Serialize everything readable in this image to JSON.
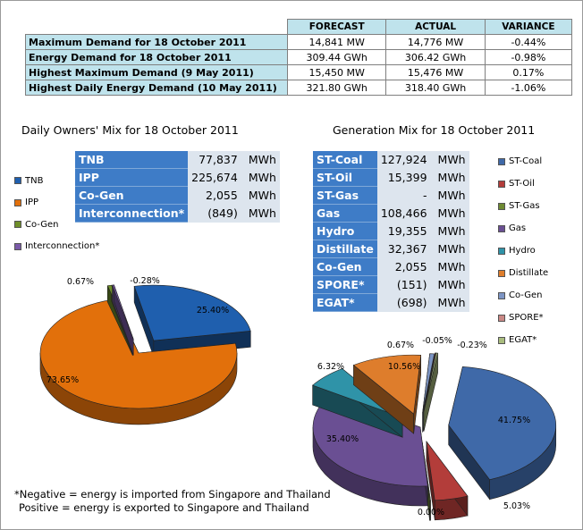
{
  "summary": {
    "headers": [
      "FORECAST",
      "ACTUAL",
      "VARIANCE"
    ],
    "rows": [
      {
        "label": "Maximum Demand for 18 October 2011",
        "forecast": "14,841 MW",
        "actual": "14,776 MW",
        "variance": "-0.44%"
      },
      {
        "label": "Energy Demand for 18 October 2011",
        "forecast": "309.44 GWh",
        "actual": "306.42 GWh",
        "variance": "-0.98%"
      },
      {
        "label": "Highest Maximum Demand (9 May 2011)",
        "forecast": "15,450 MW",
        "actual": "15,476 MW",
        "variance": "0.17%"
      },
      {
        "label": "Highest Daily Energy Demand (10 May 2011)",
        "forecast": "321.80 GWh",
        "actual": "318.40 GWh",
        "variance": "-1.06%"
      }
    ]
  },
  "owners": {
    "title": "Daily Owners' Mix for 18 October 2011",
    "rows": [
      {
        "name": "TNB",
        "value": "77,837",
        "unit": "MWh"
      },
      {
        "name": "IPP",
        "value": "225,674",
        "unit": "MWh"
      },
      {
        "name": "Co-Gen",
        "value": "2,055",
        "unit": "MWh"
      },
      {
        "name": "Interconnection*",
        "value": "(849)",
        "unit": "MWh"
      }
    ]
  },
  "generation": {
    "title": "Generation Mix for 18 October 2011",
    "rows": [
      {
        "name": "ST-Coal",
        "value": "127,924",
        "unit": "MWh"
      },
      {
        "name": "ST-Oil",
        "value": "15,399",
        "unit": "MWh"
      },
      {
        "name": "ST-Gas",
        "value": "-",
        "unit": "MWh"
      },
      {
        "name": "Gas",
        "value": "108,466",
        "unit": "MWh"
      },
      {
        "name": "Hydro",
        "value": "19,355",
        "unit": "MWh"
      },
      {
        "name": "Distillate",
        "value": "32,367",
        "unit": "MWh"
      },
      {
        "name": "Co-Gen",
        "value": "2,055",
        "unit": "MWh"
      },
      {
        "name": "SPORE*",
        "value": "(151)",
        "unit": "MWh"
      },
      {
        "name": "EGAT*",
        "value": "(698)",
        "unit": "MWh"
      }
    ]
  },
  "notes": {
    "line1": "*Negative = energy is imported from Singapore and Thailand",
    "line2": "Positive = energy is exported to Singapore and Thailand"
  },
  "chart_data": [
    {
      "type": "pie",
      "title": "Daily Owners' Mix for 18 October 2011",
      "legend_position": "left",
      "series": [
        {
          "name": "TNB",
          "value": 25.4,
          "label": "25.40%",
          "color": "#1f5fae"
        },
        {
          "name": "IPP",
          "value": 73.65,
          "label": "73.65%",
          "color": "#e2700b"
        },
        {
          "name": "Co-Gen",
          "value": 0.67,
          "label": "0.67%",
          "color": "#6f8f2a"
        },
        {
          "name": "Interconnection*",
          "value": -0.28,
          "label": "-0.28%",
          "color": "#7a5aa8"
        }
      ]
    },
    {
      "type": "pie",
      "title": "Generation Mix for 18 October 2011",
      "legend_position": "right",
      "series": [
        {
          "name": "ST-Coal",
          "value": 41.75,
          "label": "41.75%",
          "color": "#3f69a8"
        },
        {
          "name": "ST-Oil",
          "value": 5.03,
          "label": "5.03%",
          "color": "#b33d3a"
        },
        {
          "name": "ST-Gas",
          "value": 0.0,
          "label": "0.00%",
          "color": "#6e8a32"
        },
        {
          "name": "Gas",
          "value": 35.4,
          "label": "35.40%",
          "color": "#6a4f93"
        },
        {
          "name": "Hydro",
          "value": 6.32,
          "label": "6.32%",
          "color": "#2f93a8"
        },
        {
          "name": "Distillate",
          "value": 10.56,
          "label": "10.56%",
          "color": "#de7d2c"
        },
        {
          "name": "Co-Gen",
          "value": 0.67,
          "label": "0.67%",
          "color": "#7d95c4"
        },
        {
          "name": "SPORE*",
          "value": -0.05,
          "label": "-0.05%",
          "color": "#c98885"
        },
        {
          "name": "EGAT*",
          "value": -0.23,
          "label": "-0.23%",
          "color": "#a9bc7e"
        }
      ]
    }
  ]
}
